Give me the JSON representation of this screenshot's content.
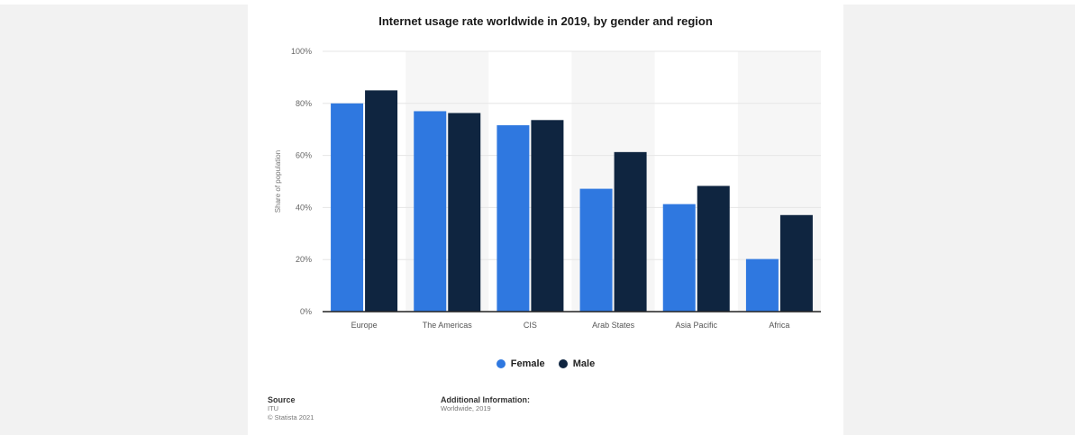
{
  "chart_data": {
    "type": "bar",
    "title": "Internet usage rate worldwide in 2019, by gender and region",
    "ylabel": "Share of population",
    "xlabel": "",
    "categories": [
      "Europe",
      "The Americas",
      "CIS",
      "Arab States",
      "Asia Pacific",
      "Africa"
    ],
    "series": [
      {
        "name": "Female",
        "values": [
          80,
          77,
          71.6,
          47.2,
          41.3,
          20.2
        ],
        "color": "#2f78e0"
      },
      {
        "name": "Male",
        "values": [
          85,
          76.3,
          73.6,
          61.3,
          48.3,
          37.1
        ],
        "color": "#0f2540"
      }
    ],
    "ylim": [
      0,
      100
    ],
    "yticks": [
      "0%",
      "20%",
      "40%",
      "60%",
      "80%",
      "100%"
    ],
    "grid": true,
    "legend": "bottom"
  },
  "footer": {
    "source_label": "Source",
    "source_lines": [
      "ITU",
      "© Statista 2021"
    ],
    "info_label": "Additional Information:",
    "info_lines": [
      "Worldwide, 2019"
    ]
  }
}
